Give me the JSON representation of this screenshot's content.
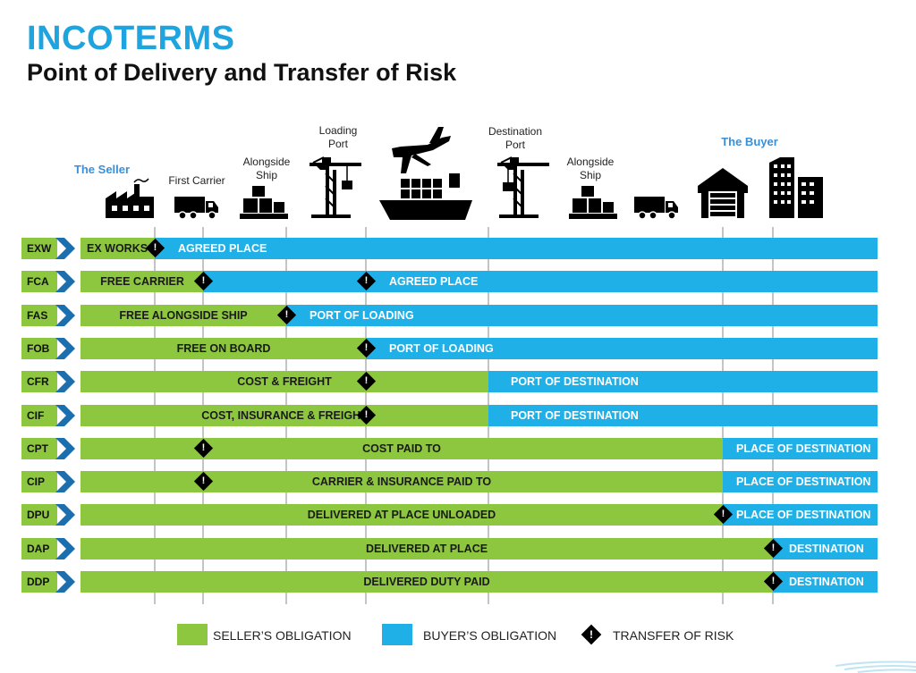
{
  "title": "INCOTERMS",
  "subtitle": "Point of Delivery and Transfer of Risk",
  "colors": {
    "seller": "#8dc63f",
    "buyer": "#1fb0e8",
    "title": "#1ea5e0",
    "party": "#3a8fd6"
  },
  "stops": [
    {
      "label": "The Seller",
      "icon": "factory-icon"
    },
    {
      "label": "First Carrier",
      "icon": "truck-icon"
    },
    {
      "label": "Alongside Ship",
      "icon": "pallet-boxes-icon"
    },
    {
      "label": "Loading Port",
      "icon": "port-crane-icon"
    },
    {
      "label": "",
      "icon": "plane-and-cargo-ship-icon"
    },
    {
      "label": "Destination Port",
      "icon": "port-crane-icon"
    },
    {
      "label": "Alongside Ship",
      "icon": "pallet-boxes-icon"
    },
    {
      "label": "",
      "icon": "truck-icon"
    },
    {
      "label": "",
      "icon": "warehouse-icon"
    },
    {
      "label": "The Buyer",
      "icon": "buildings-icon"
    }
  ],
  "terms": [
    {
      "code": "EXW",
      "seller_label": "EX WORKS",
      "buyer_label": "AGREED PLACE",
      "delivery_at": 1,
      "risk_at": [
        1
      ]
    },
    {
      "code": "FCA",
      "seller_label": "FREE CARRIER",
      "buyer_label": "AGREED PLACE",
      "delivery_at": 2,
      "risk_at": [
        2,
        4
      ]
    },
    {
      "code": "FAS",
      "seller_label": "FREE ALONGSIDE SHIP",
      "buyer_label": "PORT OF LOADING",
      "delivery_at": 3,
      "risk_at": [
        3
      ]
    },
    {
      "code": "FOB",
      "seller_label": "FREE  ON BOARD",
      "buyer_label": "PORT OF LOADING",
      "delivery_at": 4,
      "risk_at": [
        4
      ]
    },
    {
      "code": "CFR",
      "seller_label": "COST & FREIGHT",
      "buyer_label": "PORT OF DESTINATION",
      "delivery_at": 5,
      "risk_at": [
        4
      ]
    },
    {
      "code": "CIF",
      "seller_label": "COST, INSURANCE & FREIGHT",
      "buyer_label": "PORT OF DESTINATION",
      "delivery_at": 5,
      "risk_at": [
        4
      ]
    },
    {
      "code": "CPT",
      "seller_label": "COST PAID TO",
      "buyer_label": "PLACE OF DESTINATION",
      "delivery_at": 6,
      "risk_at": [
        2
      ]
    },
    {
      "code": "CIP",
      "seller_label": "CARRIER & INSURANCE PAID TO",
      "buyer_label": "PLACE OF DESTINATION",
      "delivery_at": 6,
      "risk_at": [
        2
      ]
    },
    {
      "code": "DPU",
      "seller_label": "DELIVERED AT PLACE UNLOADED",
      "buyer_label": "PLACE OF DESTINATION",
      "delivery_at": 6,
      "risk_at": [
        6
      ]
    },
    {
      "code": "DAP",
      "seller_label": "DELIVERED AT PLACE",
      "buyer_label": "DESTINATION",
      "delivery_at": 7,
      "risk_at": [
        7
      ]
    },
    {
      "code": "DDP",
      "seller_label": "DELIVERED DUTY PAID",
      "buyer_label": "DESTINATION",
      "delivery_at": 7,
      "risk_at": [
        7
      ]
    }
  ],
  "legend": {
    "seller": "SELLER’S OBLIGATION",
    "buyer": "BUYER’S OBLIGATION",
    "risk": "TRANSFER OF RISK"
  }
}
